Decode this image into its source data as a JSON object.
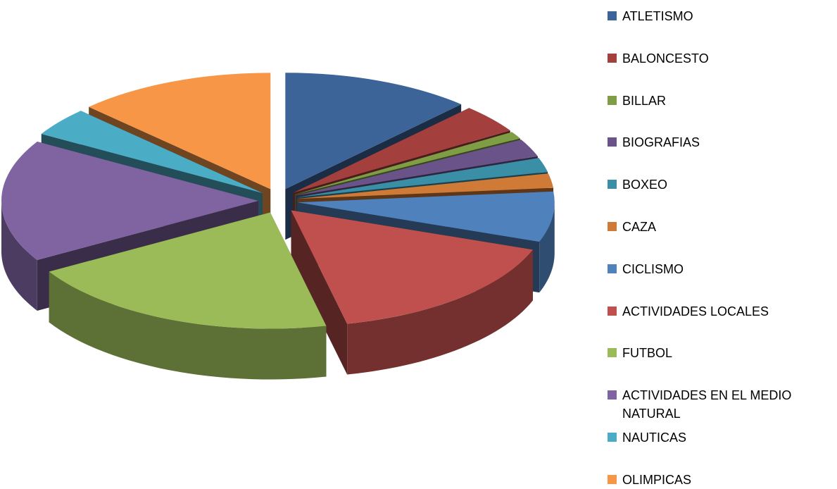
{
  "chart_data": {
    "type": "pie",
    "categories": [
      "ATLETISMO",
      "BALONCESTO",
      "BILLAR",
      "BIOGRAFIAS",
      "BOXEO",
      "CAZA",
      "CICLISMO",
      "ACTIVIDADES LOCALES",
      "FUTBOL",
      "ACTIVIDADES EN EL MEDIO NATURAL",
      "NAUTICAS",
      "OLIMPICAS"
    ],
    "values": [
      12,
      4,
      1,
      2.5,
      2,
      2,
      7,
      16,
      20,
      17,
      4,
      12.5
    ],
    "colors": [
      "#3C6499",
      "#A3403E",
      "#7E9D45",
      "#6A5389",
      "#3A8FA6",
      "#D07A38",
      "#4F81BD",
      "#C0504D",
      "#9BBB59",
      "#8064A2",
      "#4BACC6",
      "#F79646"
    ],
    "legend": "right"
  }
}
